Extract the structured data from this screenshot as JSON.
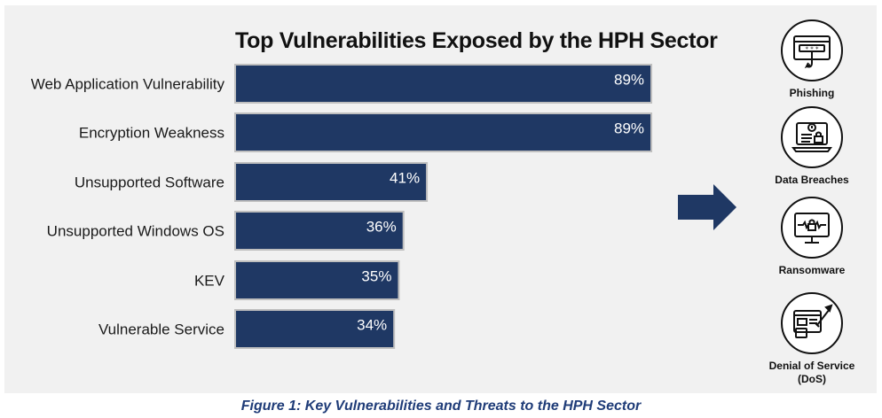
{
  "chart_data": {
    "type": "bar",
    "orientation": "horizontal",
    "title": "Top Vulnerabilities Exposed by the HPH Sector",
    "categories": [
      "Web Application Vulnerability",
      "Encryption Weakness",
      "Unsupported Software",
      "Unsupported Windows OS",
      "KEV",
      "Vulnerable Service"
    ],
    "values": [
      89,
      89,
      41,
      36,
      35,
      34
    ],
    "value_labels": [
      "89%",
      "89%",
      "41%",
      "36%",
      "35%",
      "34%"
    ],
    "unit": "%",
    "xlim": [
      0,
      100
    ],
    "grid": false,
    "bar_color": "#1f3864"
  },
  "threats": [
    {
      "label": "Phishing",
      "icon": "phishing-icon"
    },
    {
      "label": "Data Breaches",
      "icon": "data-breach-icon"
    },
    {
      "label": "Ransomware",
      "icon": "ransomware-icon"
    },
    {
      "label": "Denial of Service (DoS)",
      "icon": "dos-icon"
    }
  ],
  "caption": "Figure 1: Key Vulnerabilities and Threats to the HPH Sector",
  "colors": {
    "accent": "#1f3864",
    "caption": "#1f3c78",
    "panel": "#f1f1f1"
  }
}
